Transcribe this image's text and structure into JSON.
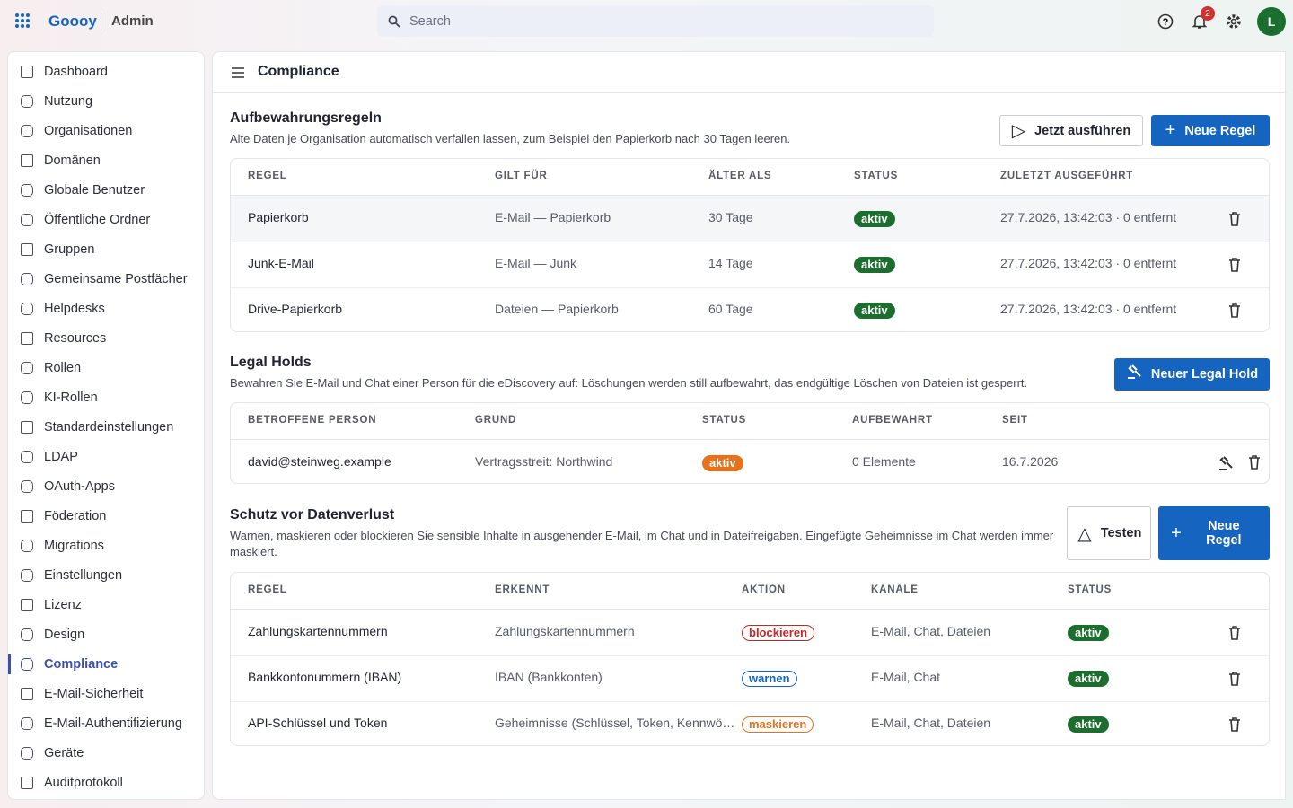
{
  "header": {
    "brand": "Goooy",
    "app": "Admin",
    "search_placeholder": "Search",
    "notification_count": "2",
    "avatar": "L"
  },
  "nav": {
    "items": [
      "Dashboard",
      "Nutzung",
      "Organisationen",
      "Domänen",
      "Globale Benutzer",
      "Öffentliche Ordner",
      "Gruppen",
      "Gemeinsame Postfächer",
      "Helpdesks",
      "Resources",
      "Rollen",
      "KI-Rollen",
      "Standardeinstellungen",
      "LDAP",
      "OAuth-Apps",
      "Föderation",
      "Migrations",
      "Einstellungen",
      "Lizenz",
      "Design",
      "Compliance",
      "E-Mail-Sicherheit",
      "E-Mail-Authentifizierung",
      "Geräte",
      "Auditprotokoll"
    ]
  },
  "page": {
    "title": "Compliance"
  },
  "retention": {
    "title": "Aufbewahrungsregeln",
    "description": "Alte Daten je Organisation automatisch verfallen lassen, zum Beispiel den Papierkorb nach 30 Tagen leeren.",
    "actions": [
      "Jetzt ausführen",
      "Neue Regel"
    ],
    "columns": [
      "REGEL",
      "GILT FÜR",
      "ÄLTER ALS",
      "STATUS",
      "ZULETZT AUSGEFÜHRT"
    ],
    "rows": [
      [
        "Papierkorb",
        "E-Mail — Papierkorb",
        "30 Tage",
        "aktiv",
        "27.7.2026, 13:42:03 · 0 entfernt"
      ],
      [
        "Junk-E-Mail",
        "E-Mail — Junk",
        "14 Tage",
        "aktiv",
        "27.7.2026, 13:42:03 · 0 entfernt"
      ],
      [
        "Drive-Papierkorb",
        "Dateien — Papierkorb",
        "60 Tage",
        "aktiv",
        "27.7.2026, 13:42:03 · 0 entfernt"
      ]
    ]
  },
  "legal_holds": {
    "title": "Legal Holds",
    "description": "Bewahren Sie E-Mail und Chat einer Person für die eDiscovery auf: Löschungen werden still aufbewahrt, das endgültige Löschen von Dateien ist gesperrt.",
    "actions": [
      "Neuer Legal Hold"
    ],
    "columns": [
      "BETROFFENE PERSON",
      "GRUND",
      "STATUS",
      "AUFBEWAHRT",
      "SEIT"
    ],
    "rows": [
      [
        "david@steinweg.example",
        "Vertragsstreit: Northwind",
        "aktiv",
        "0 Elemente",
        "16.7.2026"
      ]
    ]
  },
  "dlp": {
    "title": "Schutz vor Datenverlust",
    "description": "Warnen, maskieren oder blockieren Sie sensible Inhalte in ausgehender E-Mail, im Chat und in Dateifreigaben. Eingefügte Geheimnisse im Chat werden immer maskiert.",
    "actions": [
      "Testen",
      "Neue Regel"
    ],
    "columns": [
      "REGEL",
      "ERKENNT",
      "AKTION",
      "KANÄLE",
      "STATUS"
    ],
    "rows": [
      [
        "Zahlungskartennummern",
        "Zahlungskartennummern",
        "blockieren",
        "E-Mail, Chat, Dateien",
        "aktiv"
      ],
      [
        "Bankkontonummern (IBAN)",
        "IBAN (Bankkonten)",
        "warnen",
        "E-Mail, Chat",
        "aktiv"
      ],
      [
        "API-Schlüssel und Token",
        "Geheimnisse (Schlüssel, Token, Kennwö…",
        "maskieren",
        "E-Mail, Chat, Dateien",
        "aktiv"
      ]
    ]
  }
}
